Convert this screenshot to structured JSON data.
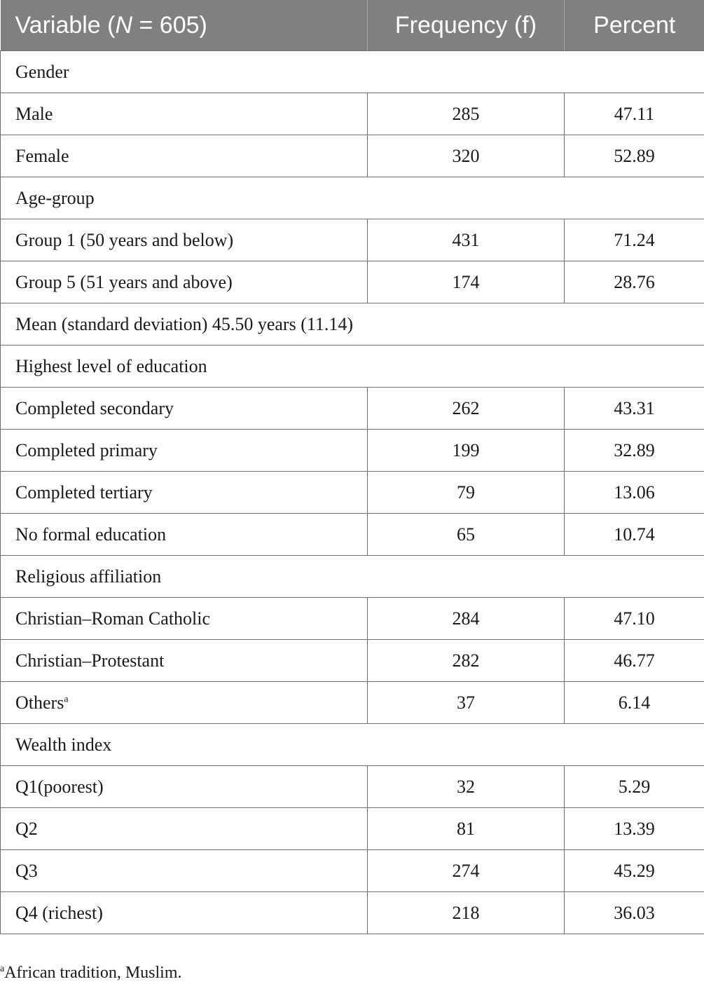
{
  "header": {
    "col1_prefix": "Variable (",
    "col1_n": "N",
    "col1_suffix": " = 605)",
    "col2": "Frequency (f)",
    "col3": "Percent"
  },
  "sections": [
    {
      "title": "Gender",
      "rows": [
        {
          "label": "Male",
          "frequency": "285",
          "percent": "47.11"
        },
        {
          "label": "Female",
          "frequency": "320",
          "percent": "52.89"
        }
      ]
    },
    {
      "title": "Age-group",
      "rows": [
        {
          "label": "Group 1 (50 years and below)",
          "frequency": "431",
          "percent": "71.24"
        },
        {
          "label": "Group 5 (51 years and above)",
          "frequency": "174",
          "percent": "28.76"
        }
      ]
    },
    {
      "title": "Mean (standard deviation) 45.50 years (11.14)",
      "rows": []
    },
    {
      "title": "Highest level of education",
      "rows": [
        {
          "label": "Completed secondary",
          "frequency": "262",
          "percent": "43.31"
        },
        {
          "label": "Completed primary",
          "frequency": "199",
          "percent": "32.89"
        },
        {
          "label": "Completed tertiary",
          "frequency": "79",
          "percent": "13.06"
        },
        {
          "label": "No formal education",
          "frequency": "65",
          "percent": "10.74"
        }
      ]
    },
    {
      "title": "Religious affiliation",
      "rows": [
        {
          "label": "Christian–Roman Catholic",
          "frequency": "284",
          "percent": "47.10"
        },
        {
          "label": "Christian–Protestant",
          "frequency": "282",
          "percent": "46.77"
        },
        {
          "label": "Others",
          "sup": "a",
          "frequency": "37",
          "percent": "6.14"
        }
      ]
    },
    {
      "title": "Wealth index",
      "rows": [
        {
          "label": "Q1(poorest)",
          "frequency": "32",
          "percent": "5.29"
        },
        {
          "label": "Q2",
          "frequency": "81",
          "percent": "13.39"
        },
        {
          "label": "Q3",
          "frequency": "274",
          "percent": "45.29"
        },
        {
          "label": "Q4 (richest)",
          "frequency": "218",
          "percent": "36.03"
        }
      ]
    }
  ],
  "footnote": {
    "marker": "a",
    "text": "African tradition, Muslim."
  }
}
